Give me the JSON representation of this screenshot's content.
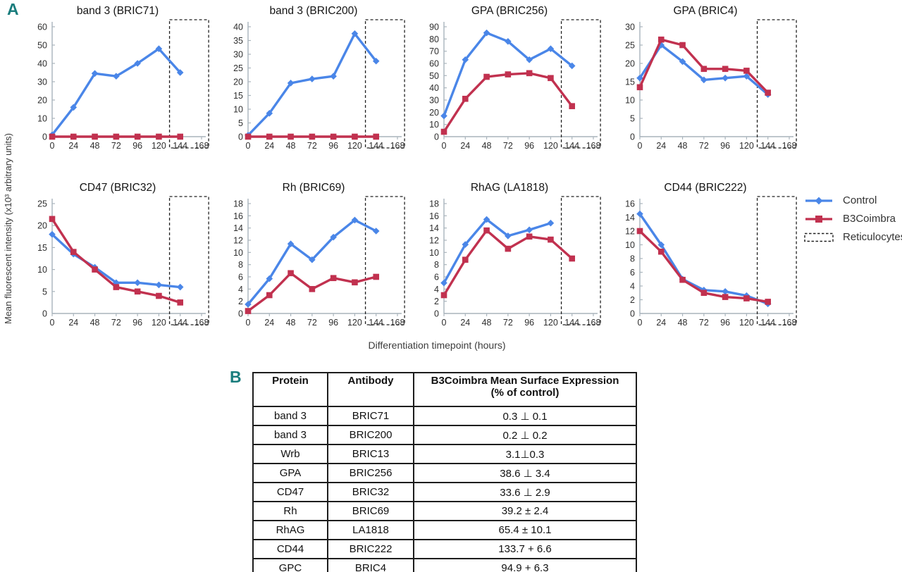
{
  "panels": {
    "a_label": "A",
    "b_label": "B"
  },
  "axes": {
    "ylabel": "Mean fluorescent intensity (x10³ arbitrary units)",
    "xlabel": "Differentiation timepoint (hours)"
  },
  "colors": {
    "control": "#4a86e8",
    "b3coimbra": "#c1314f",
    "box": "#222222",
    "axis": "#a9b4bc",
    "panel_label": "#1a7d7d"
  },
  "legend": {
    "items": [
      {
        "label": "Control"
      },
      {
        "label": "B3Coimbra"
      },
      {
        "label": "Reticulocytes"
      }
    ]
  },
  "chart_data": [
    {
      "type": "line",
      "title": "band 3 (BRIC71)",
      "x": [
        0,
        24,
        48,
        72,
        96,
        120,
        144
      ],
      "xticks": [
        0,
        24,
        48,
        72,
        96,
        120,
        144,
        168
      ],
      "ylim": [
        0,
        60
      ],
      "ystep": 10,
      "reticulocyte_box_x": [
        132,
        176
      ],
      "series": [
        {
          "name": "Control",
          "color": "#4a86e8",
          "marker": "diamond",
          "values": [
            1,
            16,
            34.5,
            33,
            40,
            48,
            35
          ]
        },
        {
          "name": "B3Coimbra",
          "color": "#c1314f",
          "marker": "square",
          "values": [
            0,
            0,
            0,
            0,
            0,
            0,
            0
          ]
        }
      ]
    },
    {
      "type": "line",
      "title": "band 3 (BRIC200)",
      "x": [
        0,
        24,
        48,
        72,
        96,
        120,
        144
      ],
      "xticks": [
        0,
        24,
        48,
        72,
        96,
        120,
        144,
        168
      ],
      "ylim": [
        0,
        40
      ],
      "ystep": 5,
      "reticulocyte_box_x": [
        132,
        176
      ],
      "series": [
        {
          "name": "Control",
          "color": "#4a86e8",
          "marker": "diamond",
          "values": [
            0.5,
            8.5,
            19.5,
            21,
            22,
            37.5,
            27.5
          ]
        },
        {
          "name": "B3Coimbra",
          "color": "#c1314f",
          "marker": "square",
          "values": [
            0,
            0,
            0,
            0,
            0,
            0,
            0
          ]
        }
      ]
    },
    {
      "type": "line",
      "title": "GPA (BRIC256)",
      "x": [
        0,
        24,
        48,
        72,
        96,
        120,
        144
      ],
      "xticks": [
        0,
        24,
        48,
        72,
        96,
        120,
        144,
        168
      ],
      "ylim": [
        0,
        90
      ],
      "ystep": 10,
      "reticulocyte_box_x": [
        132,
        176
      ],
      "series": [
        {
          "name": "Control",
          "color": "#4a86e8",
          "marker": "diamond",
          "values": [
            17,
            63,
            85,
            78,
            63,
            72,
            58
          ]
        },
        {
          "name": "B3Coimbra",
          "color": "#c1314f",
          "marker": "square",
          "values": [
            4,
            31,
            49,
            51,
            52,
            48,
            25
          ]
        }
      ]
    },
    {
      "type": "line",
      "title": "GPA (BRIC4)",
      "x": [
        0,
        24,
        48,
        72,
        96,
        120,
        144
      ],
      "xticks": [
        0,
        24,
        48,
        72,
        96,
        120,
        144,
        168
      ],
      "ylim": [
        0,
        30
      ],
      "ystep": 5,
      "reticulocyte_box_x": [
        132,
        176
      ],
      "series": [
        {
          "name": "Control",
          "color": "#4a86e8",
          "marker": "diamond",
          "values": [
            16,
            25,
            20.5,
            15.5,
            16,
            16.5,
            11.5
          ]
        },
        {
          "name": "B3Coimbra",
          "color": "#c1314f",
          "marker": "square",
          "values": [
            13.5,
            26.5,
            25,
            18.5,
            18.5,
            18,
            12
          ]
        }
      ]
    },
    {
      "type": "line",
      "title": "CD47 (BRIC32)",
      "x": [
        0,
        24,
        48,
        72,
        96,
        120,
        144
      ],
      "xticks": [
        0,
        24,
        48,
        72,
        96,
        120,
        144,
        168
      ],
      "ylim": [
        0,
        25
      ],
      "ystep": 5,
      "reticulocyte_box_x": [
        132,
        176
      ],
      "series": [
        {
          "name": "Control",
          "color": "#4a86e8",
          "marker": "diamond",
          "values": [
            18,
            13.5,
            10.5,
            7,
            7,
            6.5,
            6
          ]
        },
        {
          "name": "B3Coimbra",
          "color": "#c1314f",
          "marker": "square",
          "values": [
            21.5,
            14,
            10,
            6,
            5,
            4,
            2.5
          ]
        }
      ]
    },
    {
      "type": "line",
      "title": "Rh (BRIC69)",
      "x": [
        0,
        24,
        48,
        72,
        96,
        120,
        144
      ],
      "xticks": [
        0,
        24,
        48,
        72,
        96,
        120,
        144,
        168
      ],
      "ylim": [
        0,
        18
      ],
      "ystep": 2,
      "reticulocyte_box_x": [
        132,
        176
      ],
      "series": [
        {
          "name": "Control",
          "color": "#4a86e8",
          "marker": "diamond",
          "values": [
            1.5,
            5.7,
            11.4,
            8.8,
            12.5,
            15.3,
            13.5
          ]
        },
        {
          "name": "B3Coimbra",
          "color": "#c1314f",
          "marker": "square",
          "values": [
            0.4,
            3,
            6.6,
            4,
            5.8,
            5.1,
            6
          ]
        }
      ]
    },
    {
      "type": "line",
      "title": "RhAG (LA1818)",
      "x": [
        0,
        24,
        48,
        72,
        96,
        120,
        144
      ],
      "xticks": [
        0,
        24,
        48,
        72,
        96,
        120,
        144,
        168
      ],
      "ylim": [
        0,
        18
      ],
      "ystep": 2,
      "reticulocyte_box_x": [
        132,
        176
      ],
      "series": [
        {
          "name": "Control",
          "color": "#4a86e8",
          "marker": "diamond",
          "values": [
            5,
            11.3,
            15.4,
            12.7,
            13.7,
            14.8,
            null
          ]
        },
        {
          "name": "B3Coimbra",
          "color": "#c1314f",
          "marker": "square",
          "values": [
            3,
            8.8,
            13.6,
            10.6,
            12.6,
            12.1,
            9
          ]
        }
      ]
    },
    {
      "type": "line",
      "title": "CD44 (BRIC222)",
      "x": [
        0,
        24,
        48,
        72,
        96,
        120,
        144
      ],
      "xticks": [
        0,
        24,
        48,
        72,
        96,
        120,
        144,
        168
      ],
      "ylim": [
        0,
        16
      ],
      "ystep": 2,
      "reticulocyte_box_x": [
        132,
        176
      ],
      "series": [
        {
          "name": "Control",
          "color": "#4a86e8",
          "marker": "diamond",
          "values": [
            14.5,
            10,
            5,
            3.4,
            3.2,
            2.6,
            1.4
          ]
        },
        {
          "name": "B3Coimbra",
          "color": "#c1314f",
          "marker": "square",
          "values": [
            12,
            9,
            4.9,
            3,
            2.4,
            2.2,
            1.7
          ]
        }
      ]
    }
  ],
  "table": {
    "headers": [
      "Protein",
      "Antibody",
      "B3Coimbra Mean Surface Expression",
      "(% of control)"
    ],
    "rows": [
      [
        "band 3",
        "BRIC71",
        "0.3 ⊥ 0.1"
      ],
      [
        "band 3",
        "BRIC200",
        "0.2 ⊥ 0.2"
      ],
      [
        "Wrb",
        "BRIC13",
        "3.1⊥0.3"
      ],
      [
        "GPA",
        "BRIC256",
        "38.6 ⊥ 3.4"
      ],
      [
        "CD47",
        "BRIC32",
        "33.6 ⊥ 2.9"
      ],
      [
        "Rh",
        "BRIC69",
        "39.2 ± 2.4"
      ],
      [
        "RhAG",
        "LA1818",
        "65.4 ± 10.1"
      ],
      [
        "CD44",
        "BRIC222",
        "133.7 + 6.6"
      ],
      [
        "GPC",
        "BRIC4",
        "94.9 + 6.3"
      ]
    ]
  }
}
